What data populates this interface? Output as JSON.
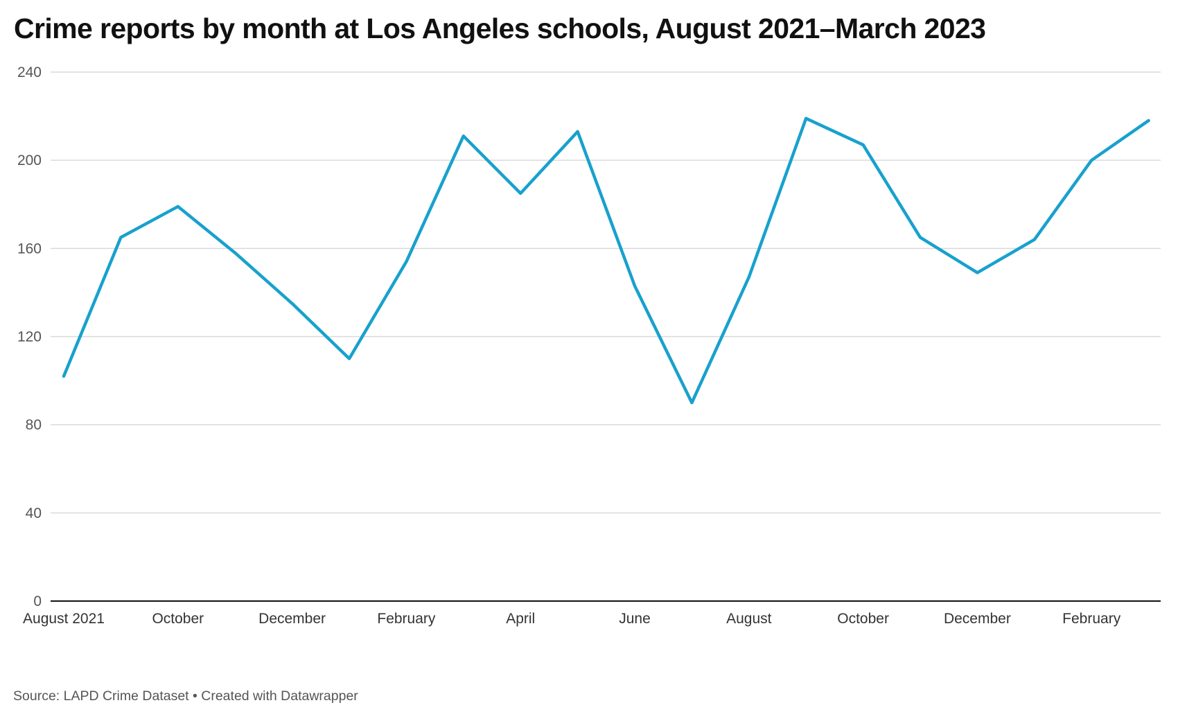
{
  "chart_data": {
    "type": "line",
    "title": "Crime reports by month at Los Angeles schools, August 2021–March 2023",
    "xlabel": "",
    "ylabel": "",
    "x": [
      "2021-08",
      "2021-09",
      "2021-10",
      "2021-11",
      "2021-12",
      "2022-01",
      "2022-02",
      "2022-03",
      "2022-04",
      "2022-05",
      "2022-06",
      "2022-07",
      "2022-08",
      "2022-09",
      "2022-10",
      "2022-11",
      "2022-12",
      "2023-01",
      "2023-02",
      "2023-03"
    ],
    "series": [
      {
        "values": [
          102,
          165,
          179,
          158,
          135,
          110,
          154,
          211,
          185,
          213,
          143,
          90,
          147,
          219,
          207,
          165,
          149,
          164,
          200,
          218
        ],
        "color": "#18a1cd"
      }
    ],
    "ylim": [
      0,
      240
    ],
    "yticks": [
      "0",
      "40",
      "80",
      "120",
      "160",
      "200",
      "240"
    ],
    "xticks": [
      {
        "label": "August 2021",
        "x": "2021-08"
      },
      {
        "label": "October",
        "x": "2021-10"
      },
      {
        "label": "December",
        "x": "2021-12"
      },
      {
        "label": "February",
        "x": "2022-02"
      },
      {
        "label": "April",
        "x": "2022-04"
      },
      {
        "label": "June",
        "x": "2022-06"
      },
      {
        "label": "August",
        "x": "2022-08"
      },
      {
        "label": "October",
        "x": "2022-10"
      },
      {
        "label": "December",
        "x": "2022-12"
      },
      {
        "label": "February",
        "x": "2023-02"
      }
    ],
    "grid": true,
    "source": "Source: LAPD Crime Dataset • Created with Datawrapper"
  }
}
